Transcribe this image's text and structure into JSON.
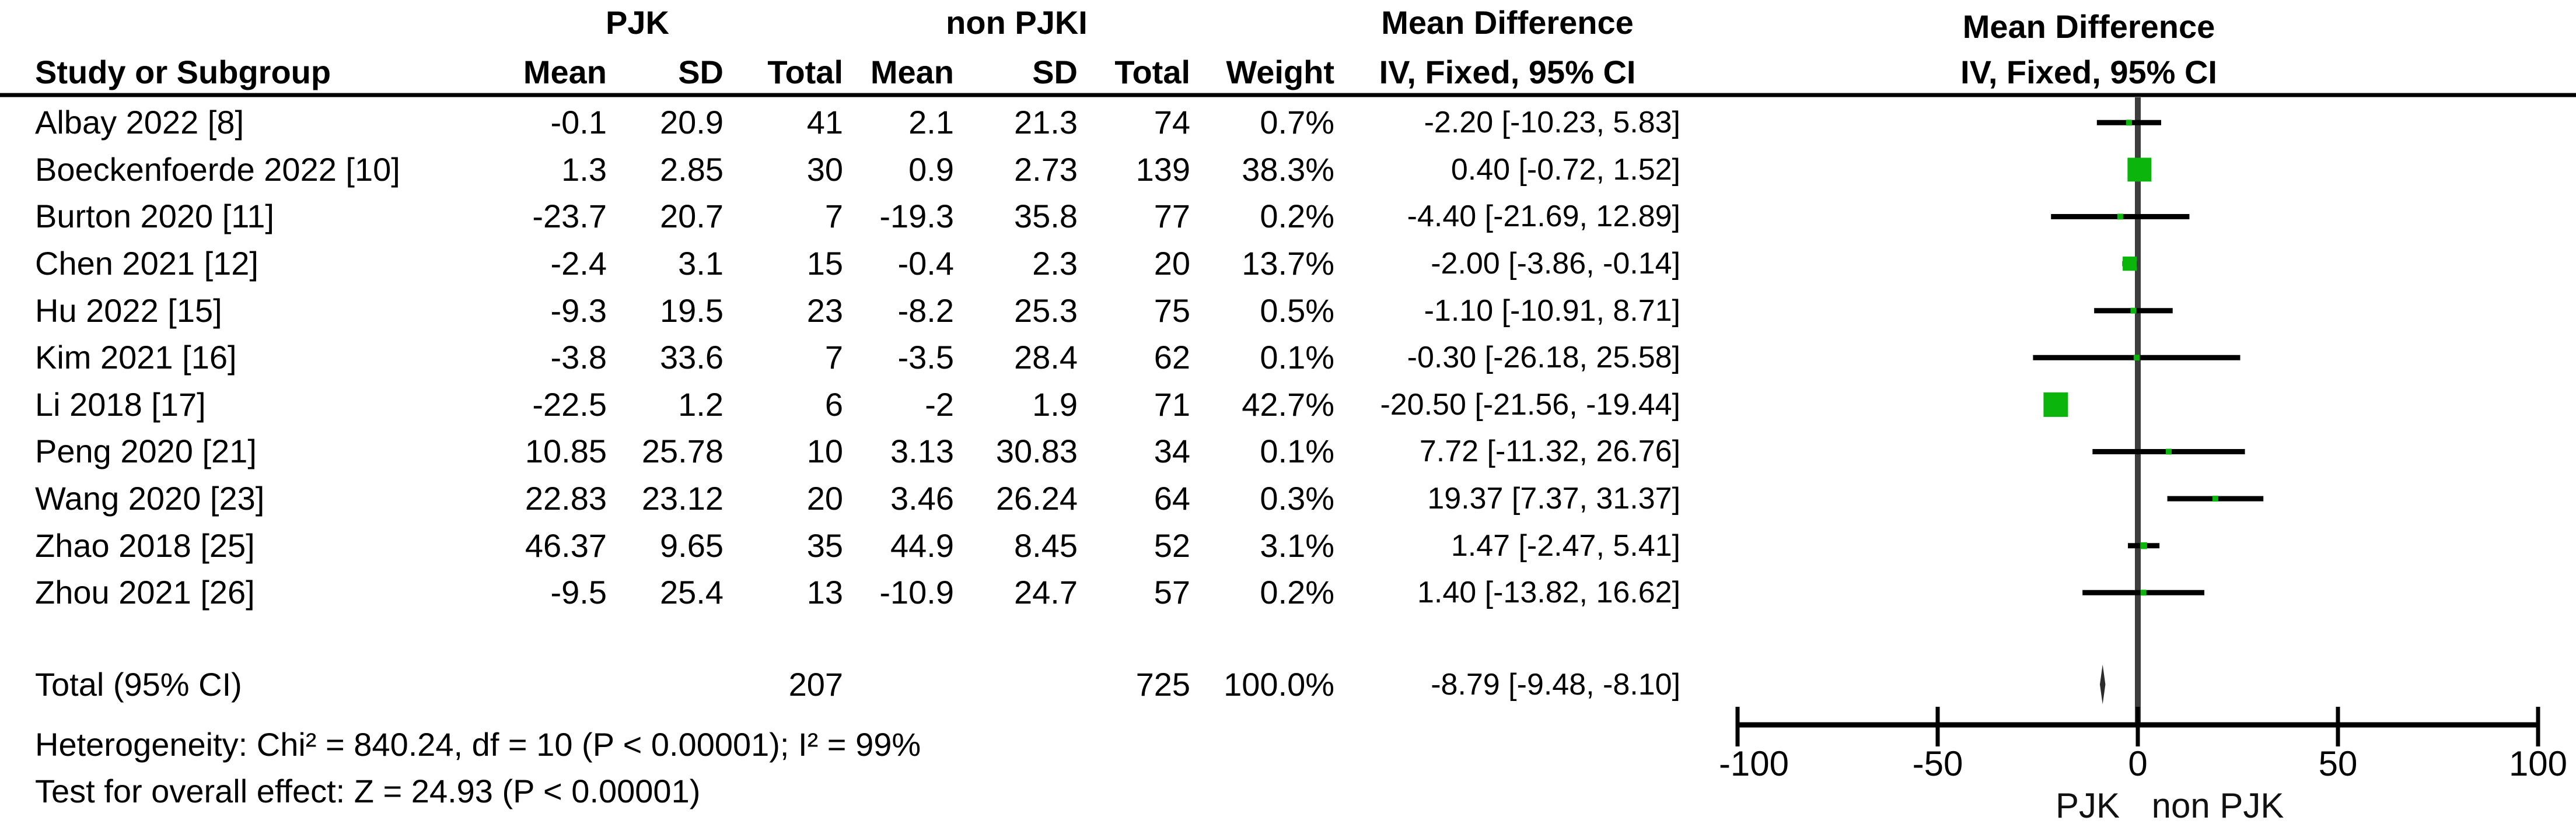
{
  "table": {
    "group1_header": "PJK",
    "group2_header": "non PJKI",
    "md_header": "Mean Difference",
    "md_subheader": "IV, Fixed, 95% CI",
    "columns": [
      "Study or Subgroup",
      "Mean",
      "SD",
      "Total",
      "Mean",
      "SD",
      "Total",
      "Weight"
    ],
    "rows": [
      [
        "Albay 2022 [8]",
        "-0.1",
        "20.9",
        "41",
        "2.1",
        "21.3",
        "74",
        "0.7%",
        "-2.20 [-10.23, 5.83]"
      ],
      [
        "Boeckenfoerde 2022 [10]",
        "1.3",
        "2.85",
        "30",
        "0.9",
        "2.73",
        "139",
        "38.3%",
        "0.40 [-0.72, 1.52]"
      ],
      [
        "Burton 2020 [11]",
        "-23.7",
        "20.7",
        "7",
        "-19.3",
        "35.8",
        "77",
        "0.2%",
        "-4.40 [-21.69, 12.89]"
      ],
      [
        "Chen 2021 [12]",
        "-2.4",
        "3.1",
        "15",
        "-0.4",
        "2.3",
        "20",
        "13.7%",
        "-2.00 [-3.86, -0.14]"
      ],
      [
        "Hu 2022 [15]",
        "-9.3",
        "19.5",
        "23",
        "-8.2",
        "25.3",
        "75",
        "0.5%",
        "-1.10 [-10.91, 8.71]"
      ],
      [
        "Kim 2021 [16]",
        "-3.8",
        "33.6",
        "7",
        "-3.5",
        "28.4",
        "62",
        "0.1%",
        "-0.30 [-26.18, 25.58]"
      ],
      [
        "Li 2018 [17]",
        "-22.5",
        "1.2",
        "6",
        "-2",
        "1.9",
        "71",
        "42.7%",
        "-20.50 [-21.56, -19.44]"
      ],
      [
        "Peng 2020 [21]",
        "10.85",
        "25.78",
        "10",
        "3.13",
        "30.83",
        "34",
        "0.1%",
        "7.72 [-11.32, 26.76]"
      ],
      [
        "Wang 2020 [23]",
        "22.83",
        "23.12",
        "20",
        "3.46",
        "26.24",
        "64",
        "0.3%",
        "19.37 [7.37, 31.37]"
      ],
      [
        "Zhao 2018 [25]",
        "46.37",
        "9.65",
        "35",
        "44.9",
        "8.45",
        "52",
        "3.1%",
        "1.47 [-2.47, 5.41]"
      ],
      [
        "Zhou 2021 [26]",
        "-9.5",
        "25.4",
        "13",
        "-10.9",
        "24.7",
        "57",
        "0.2%",
        "1.40 [-13.82, 16.62]"
      ]
    ],
    "total_row": {
      "label": "Total (95% CI)",
      "total1": "207",
      "total2": "725",
      "weight": "100.0%",
      "ci": "-8.79 [-9.48, -8.10]"
    },
    "heterogeneity": "Heterogeneity: Chi² = 840.24, df = 10 (P < 0.00001); I² = 99%",
    "overall_effect": "Test for overall effect: Z = 24.93 (P < 0.00001)"
  },
  "plot_header": {
    "title": "Mean Difference",
    "subtitle": "IV, Fixed, 95% CI"
  },
  "chart_data": {
    "type": "forest",
    "title": "Mean Difference",
    "subtitle": "IV, Fixed, 95% CI",
    "axis": {
      "min": -100,
      "max": 100,
      "ticks": [
        -100,
        -50,
        0,
        50,
        100
      ]
    },
    "xlabel_left": "PJK",
    "xlabel_right": "non PJK",
    "marker_color": "#0cb50c",
    "line_color": "#000000",
    "zero_line_color": "#3d3d3d",
    "diamond_color": "#2b2b2b",
    "studies": [
      {
        "name": "Albay 2022 [8]",
        "md": -2.2,
        "lo": -10.23,
        "hi": 5.83,
        "weight": 0.7
      },
      {
        "name": "Boeckenfoerde 2022 [10]",
        "md": 0.4,
        "lo": -0.72,
        "hi": 1.52,
        "weight": 38.3
      },
      {
        "name": "Burton 2020 [11]",
        "md": -4.4,
        "lo": -21.69,
        "hi": 12.89,
        "weight": 0.2
      },
      {
        "name": "Chen 2021 [12]",
        "md": -2.0,
        "lo": -3.86,
        "hi": -0.14,
        "weight": 13.7
      },
      {
        "name": "Hu 2022 [15]",
        "md": -1.1,
        "lo": -10.91,
        "hi": 8.71,
        "weight": 0.5
      },
      {
        "name": "Kim 2021 [16]",
        "md": -0.3,
        "lo": -26.18,
        "hi": 25.58,
        "weight": 0.1
      },
      {
        "name": "Li 2018 [17]",
        "md": -20.5,
        "lo": -21.56,
        "hi": -19.44,
        "weight": 42.7
      },
      {
        "name": "Peng 2020 [21]",
        "md": 7.72,
        "lo": -11.32,
        "hi": 26.76,
        "weight": 0.1
      },
      {
        "name": "Wang 2020 [23]",
        "md": 19.37,
        "lo": 7.37,
        "hi": 31.37,
        "weight": 0.3
      },
      {
        "name": "Zhao 2018 [25]",
        "md": 1.47,
        "lo": -2.47,
        "hi": 5.41,
        "weight": 3.1
      },
      {
        "name": "Zhou 2021 [26]",
        "md": 1.4,
        "lo": -13.82,
        "hi": 16.62,
        "weight": 0.2
      }
    ],
    "total": {
      "name": "Total (95% CI)",
      "md": -8.79,
      "lo": -9.48,
      "hi": -8.1
    }
  }
}
